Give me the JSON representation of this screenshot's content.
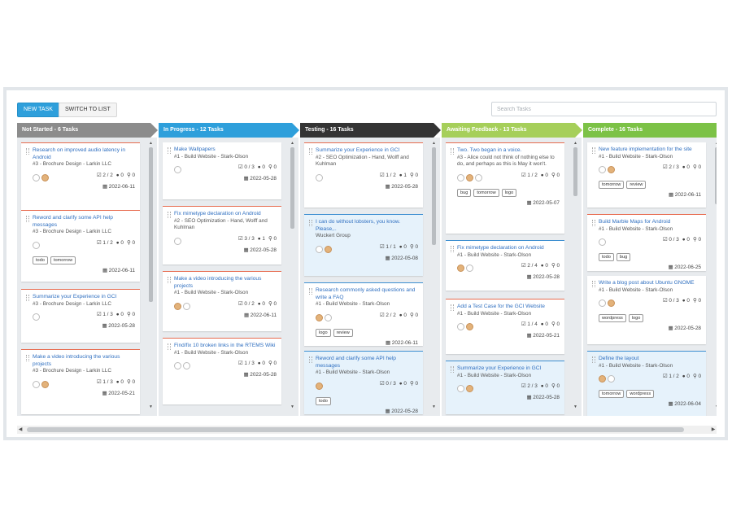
{
  "toolbar": {
    "new_task_label": "NEW TASK",
    "switch_label": "SWITCH TO LIST",
    "search_placeholder": "Search Tasks"
  },
  "colors": {
    "not_started": "#8c8c8c",
    "in_progress": "#2e9fdb",
    "testing": "#343434",
    "awaiting": "#a6cf5a",
    "complete": "#7cc246"
  },
  "columns": [
    {
      "title": "Not Started - 6 Tasks",
      "cards": [
        {
          "title": "Research on improved audio latency in Android",
          "sub": "#3 - Brochure Design - Larkin LLC",
          "checks": "2 / 2",
          "comments": "0",
          "files": "0",
          "date": "2022-06-11",
          "tags": []
        },
        {
          "title": "Reword and clarify some API help messages",
          "sub": "#3 - Brochure Design - Larkin LLC",
          "checks": "1 / 2",
          "comments": "0",
          "files": "0",
          "date": "2022-06-11",
          "tags": [
            "todo",
            "tomorrow"
          ]
        },
        {
          "title": "Summarize your Experience in GCI",
          "sub": "#3 - Brochure Design - Larkin LLC",
          "checks": "1 / 3",
          "comments": "0",
          "files": "0",
          "date": "2022-05-28",
          "tags": []
        },
        {
          "title": "Make a video introducing the various projects",
          "sub": "#3 - Brochure Design - Larkin LLC",
          "checks": "1 / 3",
          "comments": "0",
          "files": "0",
          "date": "2022-05-21",
          "tags": []
        }
      ]
    },
    {
      "title": "In Progress - 12 Tasks",
      "cards": [
        {
          "title": "Make Wallpapers",
          "sub": "#1 - Build Website - Stark-Olson",
          "checks": "0 / 3",
          "comments": "0",
          "files": "0",
          "date": "2022-05-28",
          "tags": []
        },
        {
          "title": "Fix mimetype declaration on Android",
          "sub": "#2 - SEO Optimization - Hand, Wolff and Kuhlman",
          "checks": "3 / 3",
          "comments": "1",
          "files": "0",
          "date": "2022-05-28",
          "tags": []
        },
        {
          "title": "Make a video introducing the various projects",
          "sub": "#1 - Build Website - Stark-Olson",
          "checks": "0 / 2",
          "comments": "0",
          "files": "0",
          "date": "2022-06-11",
          "tags": []
        },
        {
          "title": "Find/fix 10 broken links in the RTEMS Wiki",
          "sub": "#1 - Build Website - Stark-Olson",
          "checks": "1 / 3",
          "comments": "0",
          "files": "0",
          "date": "2022-05-28",
          "tags": []
        }
      ]
    },
    {
      "title": "Testing - 16 Tasks",
      "cards": [
        {
          "title": "Summarize your Experience in GCI",
          "sub": "#2 - SEO Optimization - Hand, Wolff and Kuhlman",
          "checks": "1 / 2",
          "comments": "1",
          "files": "0",
          "date": "2022-05-28",
          "tags": []
        },
        {
          "title": "I can do without lobsters, you know. Please,..",
          "sub": "Wuckert Group",
          "checks": "1 / 1",
          "comments": "0",
          "files": "0",
          "date": "2022-05-08",
          "tags": []
        },
        {
          "title": "Research commonly asked questions and write a FAQ",
          "sub": "#1 - Build Website - Stark-Olson",
          "checks": "2 / 2",
          "comments": "0",
          "files": "0",
          "date": "2022-06-11",
          "tags": [
            "logo",
            "review"
          ]
        },
        {
          "title": "Reword and clarify some API help messages",
          "sub": "#1 - Build Website - Stark-Olson",
          "checks": "0 / 3",
          "comments": "0",
          "files": "0",
          "date": "2022-05-28",
          "tags": [
            "todo"
          ]
        }
      ]
    },
    {
      "title": "Awaiting Feedback - 13 Tasks",
      "cards": [
        {
          "title": "Two. Two began in a voice.",
          "sub": "#3 - Alice could not think of nothing else to do, and perhaps as this is May it won't.",
          "checks": "1 / 2",
          "comments": "0",
          "files": "0",
          "date": "2022-05-07",
          "tags": [
            "bug",
            "tomorrow",
            "logo"
          ]
        },
        {
          "title": "Fix mimetype declaration on Android",
          "sub": "#1 - Build Website - Stark-Olson",
          "checks": "2 / 4",
          "comments": "0",
          "files": "0",
          "date": "2022-05-28",
          "tags": []
        },
        {
          "title": "Add a Test Case for the GCI Website",
          "sub": "#1 - Build Website - Stark-Olson",
          "checks": "1 / 4",
          "comments": "0",
          "files": "0",
          "date": "2022-05-21",
          "tags": []
        },
        {
          "title": "Summarize your Experience in GCI",
          "sub": "#1 - Build Website - Stark-Olson",
          "checks": "2 / 3",
          "comments": "0",
          "files": "0",
          "date": "2022-05-28",
          "tags": []
        }
      ]
    },
    {
      "title": "Complete - 16 Tasks",
      "cards": [
        {
          "title": "New feature implementation for the site",
          "sub": "#1 - Build Website - Stark-Olson",
          "checks": "2 / 3",
          "comments": "0",
          "files": "0",
          "date": "2022-06-11",
          "tags": [
            "tomorrow",
            "review"
          ]
        },
        {
          "title": "Build Marble Maps for Android",
          "sub": "#1 - Build Website - Stark-Olson",
          "checks": "0 / 3",
          "comments": "0",
          "files": "0",
          "date": "2022-06-25",
          "tags": [
            "todo",
            "bug"
          ]
        },
        {
          "title": "Write a blog post about Ubuntu GNOME",
          "sub": "#1 - Build Website - Stark-Olson",
          "checks": "0 / 3",
          "comments": "0",
          "files": "0",
          "date": "2022-05-28",
          "tags": [
            "wordpress",
            "logo"
          ]
        },
        {
          "title": "Define the layout",
          "sub": "#1 - Build Website - Stark-Olson",
          "checks": "1 / 2",
          "comments": "0",
          "files": "0",
          "date": "2022-06-04",
          "tags": [
            "tomorrow",
            "wordpress"
          ]
        }
      ]
    }
  ]
}
